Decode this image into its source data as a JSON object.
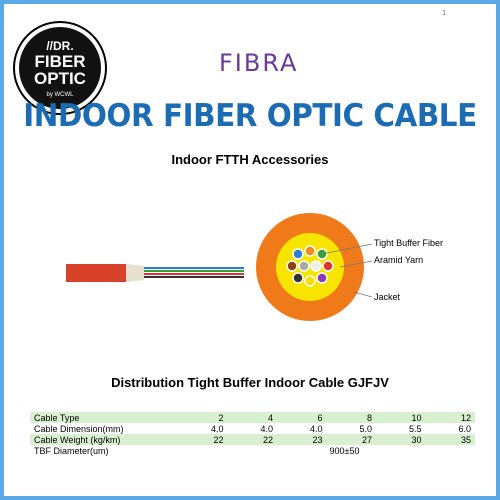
{
  "page_number": "1",
  "badge": {
    "line1": "//DR.",
    "line2": "FIBER",
    "line3": "OPTIC",
    "line4": "by WCWL"
  },
  "brand": "FIBRA",
  "header": {
    "title": "INDOOR FIBER OPTIC CABLE",
    "subtitle": "Indoor FTTH Accessories"
  },
  "diagram": {
    "labels": [
      "Tight Buffer Fiber",
      "Aramid Yarn",
      "Jacket"
    ]
  },
  "caption": "Distribution Tight Buffer Indoor Cable GJFJV",
  "table": {
    "rows": [
      [
        "Cable Type",
        "2",
        "4",
        "6",
        "8",
        "10",
        "12"
      ],
      [
        "Cable Dimension(mm)",
        "4.0",
        "4.0",
        "4.0",
        "5.0",
        "5.5",
        "6.0"
      ],
      [
        "Cable Weight (kg/km)",
        "22",
        "22",
        "23",
        "27",
        "30",
        "35"
      ],
      [
        "TBF Diameter(um)",
        "900±50"
      ]
    ]
  }
}
